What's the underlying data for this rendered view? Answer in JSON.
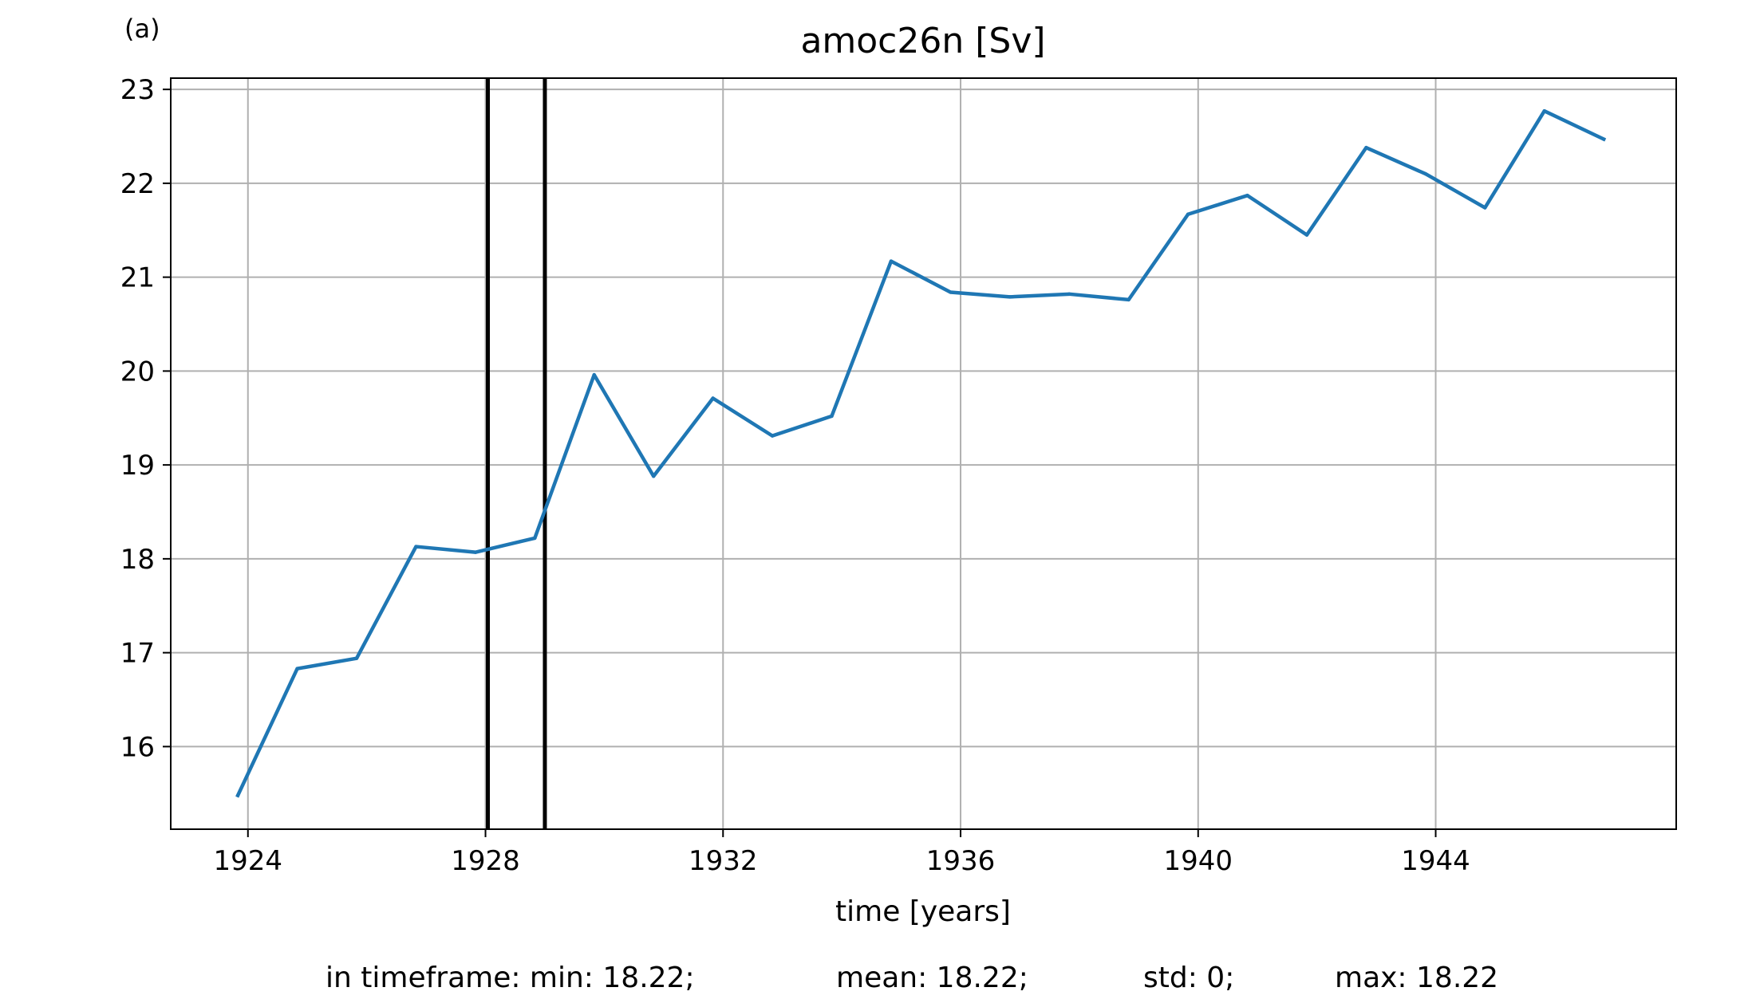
{
  "panel_label": "(a)",
  "stats": [
    "in timeframe: min: 18.22;",
    "mean: 18.22;",
    "std: 0;",
    "max: 18.22"
  ],
  "colors": {
    "series": "#1f77b4",
    "grid": "#b0b0b0",
    "markers": "#000000"
  },
  "chart_data": {
    "type": "line",
    "title": "amoc26n [Sv]",
    "xlabel": "time [years]",
    "ylabel": "",
    "xlim": [
      1922.7,
      1948.05
    ],
    "ylim": [
      15.12,
      23.12
    ],
    "xticks": [
      1924,
      1928,
      1932,
      1936,
      1940,
      1944
    ],
    "xtick_labels": [
      "1924",
      "1928",
      "1932",
      "1936",
      "1940",
      "1944"
    ],
    "yticks": [
      16,
      17,
      18,
      19,
      20,
      21,
      22,
      23
    ],
    "ytick_labels": [
      "16",
      "17",
      "18",
      "19",
      "20",
      "21",
      "22",
      "23"
    ],
    "grid": true,
    "legend": "none",
    "vertical_markers": [
      1928.04,
      1929.0
    ],
    "series": [
      {
        "x": [
          1923.83,
          1924.83,
          1925.83,
          1926.83,
          1927.83,
          1928.83,
          1929.83,
          1930.83,
          1931.83,
          1932.83,
          1933.83,
          1934.83,
          1935.83,
          1936.83,
          1937.83,
          1938.83,
          1939.83,
          1940.83,
          1941.83,
          1942.83,
          1943.83,
          1944.83,
          1945.83,
          1946.83
        ],
        "values": [
          15.48,
          16.83,
          16.94,
          18.13,
          18.07,
          18.22,
          19.96,
          18.88,
          19.71,
          19.31,
          19.52,
          21.17,
          20.84,
          20.79,
          20.82,
          20.76,
          21.67,
          21.87,
          21.45,
          22.38,
          22.1,
          21.74,
          22.77,
          22.47
        ]
      }
    ]
  }
}
